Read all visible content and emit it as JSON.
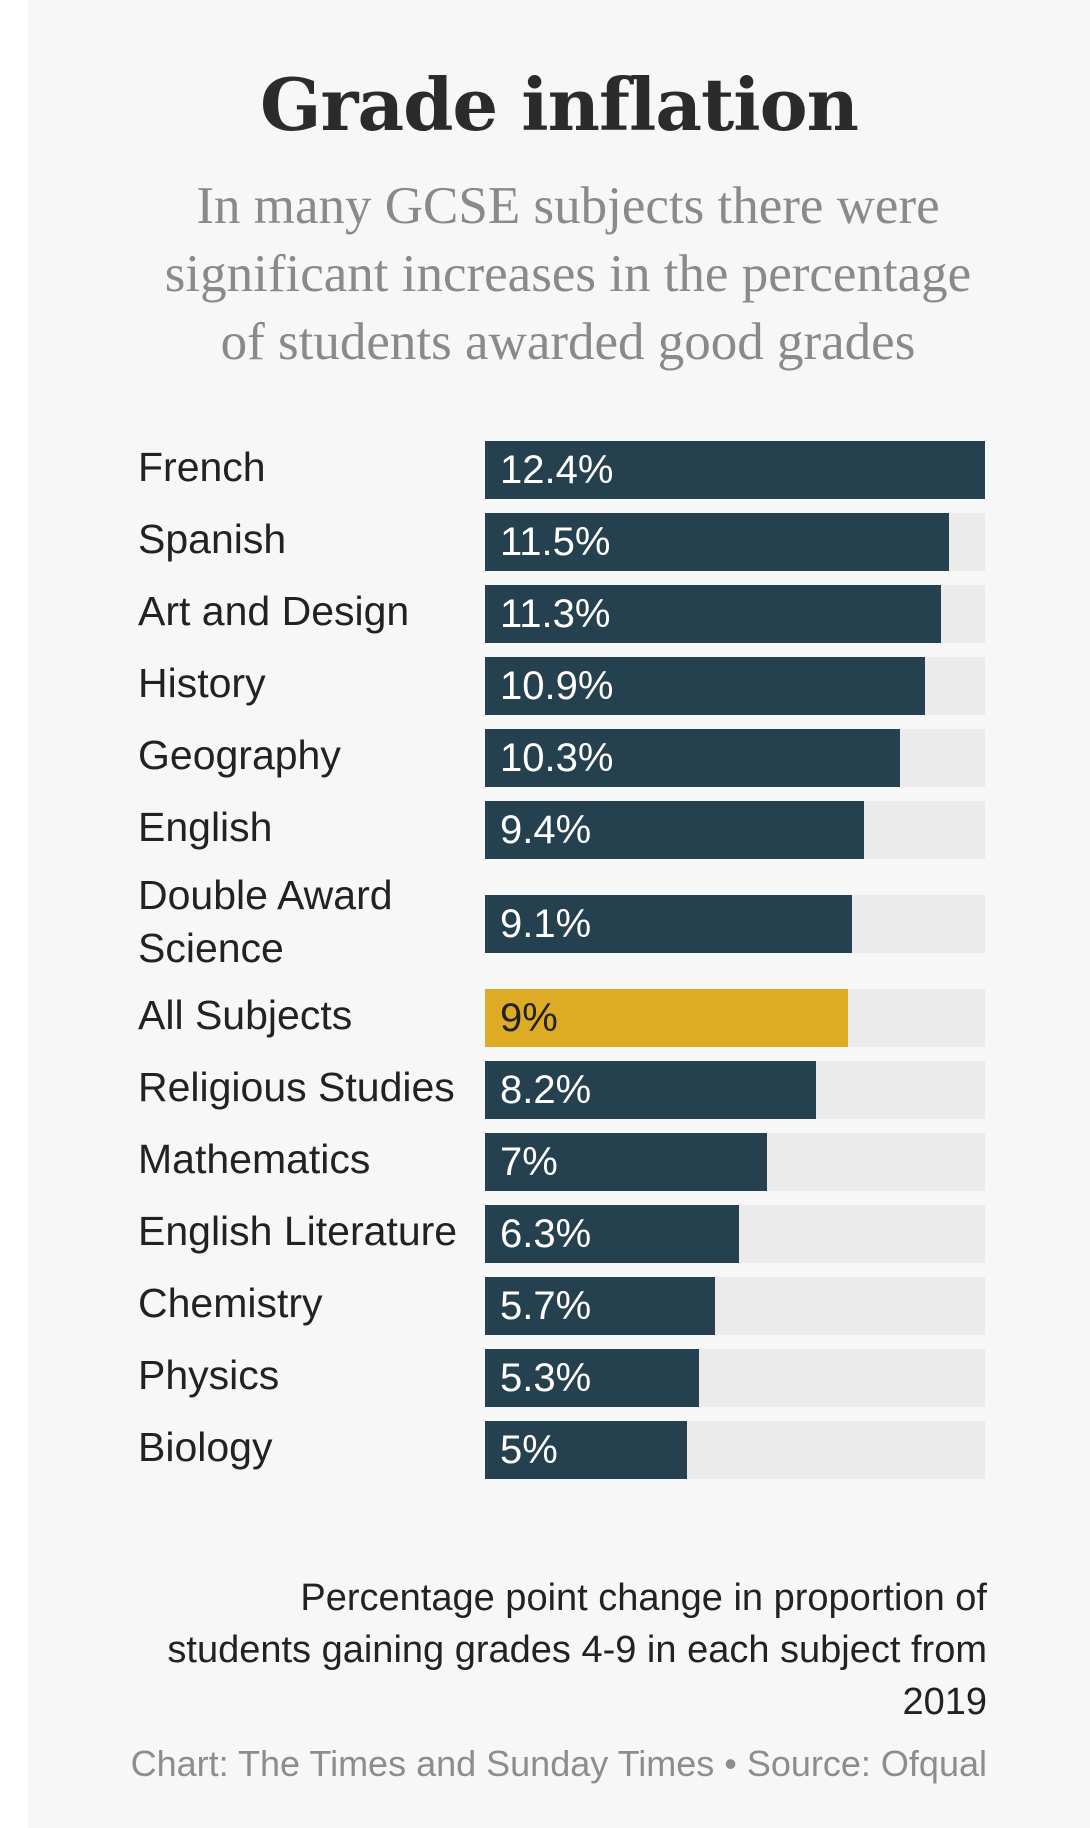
{
  "title": "Grade inflation",
  "subtitle": "In many GCSE subjects there were significant increases in the percentage of students awarded good grades",
  "note": "Percentage point change in proportion of students gaining grades 4-9 in each subject from 2019",
  "credit": "Chart: The Times and Sunday Times • Source: Ofqual",
  "colors": {
    "bar": "#25404e",
    "highlight": "#ddab24",
    "track": "#ebebeb"
  },
  "chart_data": {
    "type": "bar",
    "orientation": "horizontal",
    "categories": [
      "French",
      "Spanish",
      "Art and Design",
      "History",
      "Geography",
      "English",
      "Double Award Science",
      "All Subjects",
      "Religious Studies",
      "Mathematics",
      "English Literature",
      "Chemistry",
      "Physics",
      "Biology"
    ],
    "values": [
      12.4,
      11.5,
      11.3,
      10.9,
      10.3,
      9.4,
      9.1,
      9,
      8.2,
      7,
      6.3,
      5.7,
      5.3,
      5
    ],
    "value_labels": [
      "12.4%",
      "11.5%",
      "11.3%",
      "10.9%",
      "10.3%",
      "9.4%",
      "9.1%",
      "9%",
      "8.2%",
      "7%",
      "6.3%",
      "5.7%",
      "5.3%",
      "5%"
    ],
    "highlight": "All Subjects",
    "xlim": [
      0,
      12.4
    ],
    "grid": false,
    "legend": "none"
  }
}
